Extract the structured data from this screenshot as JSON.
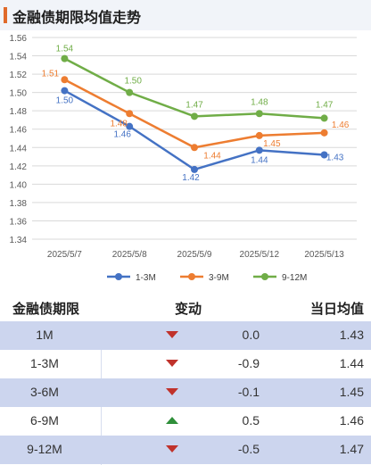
{
  "header": {
    "title": "金融债期限均值走势"
  },
  "chart_data": {
    "type": "line",
    "categories": [
      "2025/5/7",
      "2025/5/8",
      "2025/5/9",
      "2025/5/12",
      "2025/5/13"
    ],
    "ylim": [
      1.34,
      1.56
    ],
    "yticks": [
      "1.34",
      "1.36",
      "1.38",
      "1.40",
      "1.42",
      "1.44",
      "1.46",
      "1.48",
      "1.50",
      "1.52",
      "1.54",
      "1.56"
    ],
    "grid": true,
    "legend_position": "bottom",
    "series": [
      {
        "name": "1-3M",
        "color": "#4472c4",
        "values": [
          1.502,
          1.463,
          1.416,
          1.437,
          1.432
        ],
        "labels": [
          "1.50",
          "1.46",
          "1.42",
          "1.44",
          "1.43"
        ]
      },
      {
        "name": "3-9M",
        "color": "#ed7d31",
        "values": [
          1.514,
          1.477,
          1.44,
          1.453,
          1.456
        ],
        "labels": [
          "1.51",
          "1.48",
          "1.44",
          "1.45",
          "1.46"
        ]
      },
      {
        "name": "9-12M",
        "color": "#70ad47",
        "values": [
          1.537,
          1.5,
          1.474,
          1.477,
          1.472
        ],
        "labels": [
          "1.54",
          "1.50",
          "1.47",
          "1.48",
          "1.47"
        ]
      }
    ]
  },
  "table": {
    "headers": {
      "term": "金融债期限",
      "change": "变动",
      "avg": "当日均值"
    },
    "rows": [
      {
        "term": "1M",
        "direction": "down",
        "change": "0.0",
        "avg": "1.43"
      },
      {
        "term": "1-3M",
        "direction": "down",
        "change": "-0.9",
        "avg": "1.44"
      },
      {
        "term": "3-6M",
        "direction": "down",
        "change": "-0.1",
        "avg": "1.45"
      },
      {
        "term": "6-9M",
        "direction": "up",
        "change": "0.5",
        "avg": "1.46"
      },
      {
        "term": "9-12M",
        "direction": "down",
        "change": "-0.5",
        "avg": "1.47"
      }
    ]
  }
}
